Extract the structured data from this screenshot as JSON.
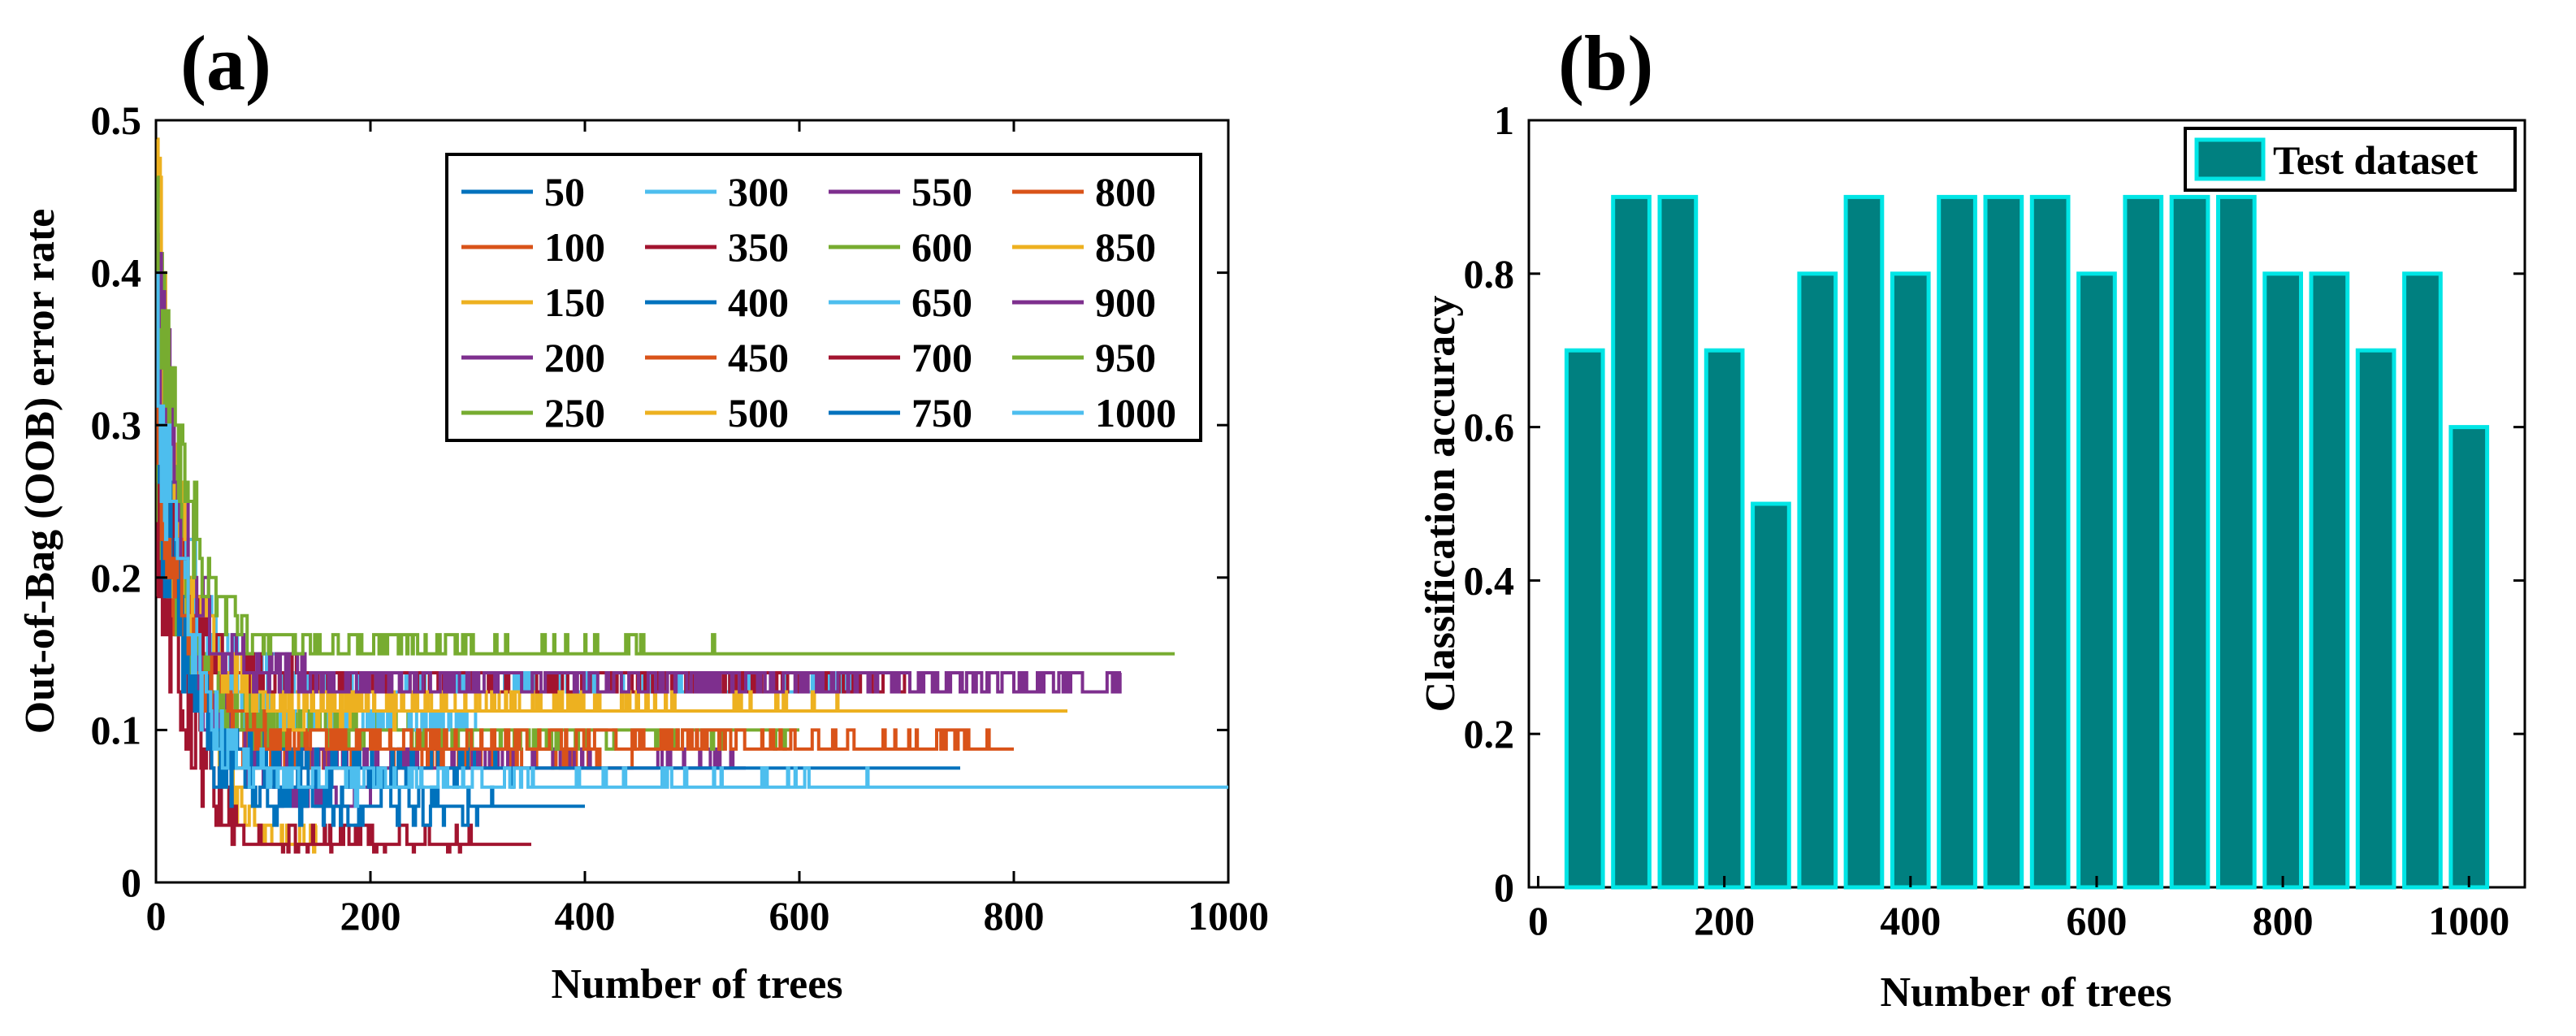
{
  "chart_data": [
    {
      "panel": "(a)",
      "type": "line",
      "title": "",
      "xlabel": "Number of trees",
      "ylabel": "Out-of-Bag (OOB) error rate",
      "xlim": [
        0,
        1000
      ],
      "ylim": [
        0,
        0.5
      ],
      "xticks": [
        "0",
        "200",
        "400",
        "600",
        "800",
        "1000"
      ],
      "yticks": [
        "0",
        "0.1",
        "0.2",
        "0.3",
        "0.4",
        "0.5"
      ],
      "legend_position": "top-right",
      "series": [
        {
          "name": "50",
          "color": "#0072BD",
          "trees": 50,
          "start": 0.3,
          "final": 0.093
        },
        {
          "name": "100",
          "color": "#D95319",
          "trees": 100,
          "start": 0.33,
          "final": 0.093
        },
        {
          "name": "150",
          "color": "#EDB120",
          "trees": 150,
          "start": 0.47,
          "final": 0.025
        },
        {
          "name": "200",
          "color": "#7E2F8E",
          "trees": 200,
          "start": 0.4,
          "final": 0.055
        },
        {
          "name": "250",
          "color": "#77AC30",
          "trees": 250,
          "start": 0.42,
          "final": 0.1
        },
        {
          "name": "300",
          "color": "#4DBEEE",
          "trees": 300,
          "start": 0.35,
          "final": 0.104
        },
        {
          "name": "350",
          "color": "#A2142F",
          "trees": 350,
          "start": 0.25,
          "final": 0.025
        },
        {
          "name": "400",
          "color": "#0072BD",
          "trees": 400,
          "start": 0.32,
          "final": 0.05
        },
        {
          "name": "450",
          "color": "#D95319",
          "trees": 450,
          "start": 0.28,
          "final": 0.08
        },
        {
          "name": "500",
          "color": "#EDB120",
          "trees": 500,
          "start": 0.3,
          "final": 0.115
        },
        {
          "name": "550",
          "color": "#7E2F8E",
          "trees": 550,
          "start": 0.33,
          "final": 0.078
        },
        {
          "name": "600",
          "color": "#77AC30",
          "trees": 600,
          "start": 0.3,
          "final": 0.097
        },
        {
          "name": "650",
          "color": "#4DBEEE",
          "trees": 650,
          "start": 0.35,
          "final": 0.13
        },
        {
          "name": "700",
          "color": "#A2142F",
          "trees": 700,
          "start": 0.28,
          "final": 0.132
        },
        {
          "name": "750",
          "color": "#0072BD",
          "trees": 750,
          "start": 0.3,
          "final": 0.075
        },
        {
          "name": "800",
          "color": "#D95319",
          "trees": 800,
          "start": 0.32,
          "final": 0.092
        },
        {
          "name": "850",
          "color": "#EDB120",
          "trees": 850,
          "start": 0.36,
          "final": 0.115
        },
        {
          "name": "900",
          "color": "#7E2F8E",
          "trees": 900,
          "start": 0.4,
          "final": 0.132
        },
        {
          "name": "950",
          "color": "#77AC30",
          "trees": 950,
          "start": 0.42,
          "final": 0.152
        },
        {
          "name": "1000",
          "color": "#4DBEEE",
          "trees": 1000,
          "start": 0.35,
          "final": 0.065
        }
      ]
    },
    {
      "panel": "(b)",
      "type": "bar",
      "title": "",
      "xlabel": "Number of trees",
      "ylabel": "Classification accuracy",
      "xlim": [
        -10,
        1060
      ],
      "ylim": [
        0,
        1
      ],
      "xticks": [
        "0",
        "200",
        "400",
        "600",
        "800",
        "1000"
      ],
      "yticks": [
        "0",
        "0.2",
        "0.4",
        "0.6",
        "0.8",
        "1"
      ],
      "legend": [
        "Test dataset"
      ],
      "legend_position": "top-right",
      "bar_color": "#008080",
      "edge_color": "#00E5E5",
      "categories": [
        50,
        100,
        150,
        200,
        250,
        300,
        350,
        400,
        450,
        500,
        550,
        600,
        650,
        700,
        750,
        800,
        850,
        900,
        950,
        1000
      ],
      "values": [
        0.7,
        0.9,
        0.9,
        0.7,
        0.5,
        0.8,
        0.9,
        0.8,
        0.9,
        0.9,
        0.9,
        0.8,
        0.9,
        0.9,
        0.9,
        0.8,
        0.8,
        0.7,
        0.8,
        0.6
      ]
    }
  ]
}
